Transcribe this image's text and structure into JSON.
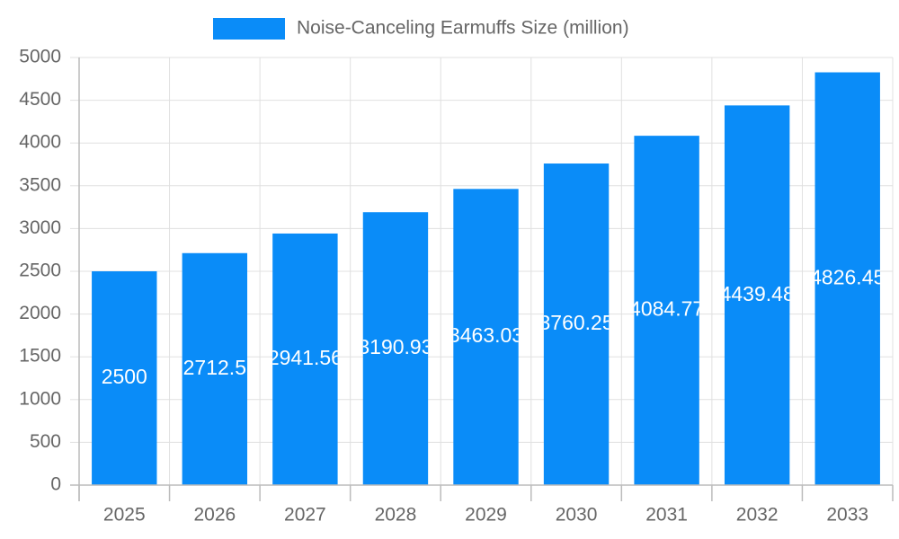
{
  "chart_data": {
    "type": "bar",
    "categories": [
      "2025",
      "2026",
      "2027",
      "2028",
      "2029",
      "2030",
      "2031",
      "2032",
      "2033"
    ],
    "series": [
      {
        "name": "Noise-Canceling Earmuffs Size (million)",
        "color": "#0a8cf8",
        "values": [
          2500,
          2712.5,
          2941.56,
          3190.93,
          3463.03,
          3760.25,
          4084.77,
          4439.48,
          4826.45
        ]
      }
    ],
    "ylim": [
      0,
      5000
    ],
    "yticks": [
      0,
      500,
      1000,
      1500,
      2000,
      2500,
      3000,
      3500,
      4000,
      4500,
      5000
    ],
    "grid": true,
    "legend": "top"
  }
}
